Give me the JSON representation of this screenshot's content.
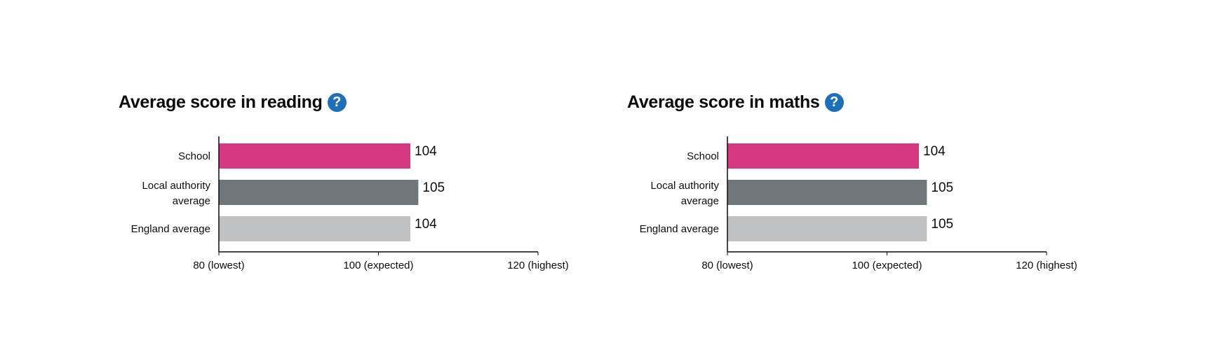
{
  "help_icon": {
    "glyph": "?",
    "color": "#1d70b8",
    "name": "question-icon"
  },
  "chart_data": [
    {
      "type": "bar",
      "orientation": "horizontal",
      "title": "Average score in reading",
      "categories": [
        "School",
        "Local authority average",
        "England average"
      ],
      "category_lines": [
        [
          "School"
        ],
        [
          "Local authority",
          "average"
        ],
        [
          "England average"
        ]
      ],
      "values": [
        104,
        105,
        104
      ],
      "colors": [
        "#d53880",
        "#6f777b",
        "#bfc1c3"
      ],
      "xlim": [
        80,
        120
      ],
      "xticks": [
        80,
        100,
        120
      ],
      "xtick_labels": [
        "80 (lowest)",
        "100 (expected)",
        "120 (highest)"
      ],
      "grid": false
    },
    {
      "type": "bar",
      "orientation": "horizontal",
      "title": "Average score in maths",
      "categories": [
        "School",
        "Local authority average",
        "England average"
      ],
      "category_lines": [
        [
          "School"
        ],
        [
          "Local authority",
          "average"
        ],
        [
          "England average"
        ]
      ],
      "values": [
        104,
        105,
        105
      ],
      "colors": [
        "#d53880",
        "#6f777b",
        "#bfc1c3"
      ],
      "xlim": [
        80,
        120
      ],
      "xticks": [
        80,
        100,
        120
      ],
      "xtick_labels": [
        "80 (lowest)",
        "100 (expected)",
        "120 (highest)"
      ],
      "grid": false
    }
  ]
}
